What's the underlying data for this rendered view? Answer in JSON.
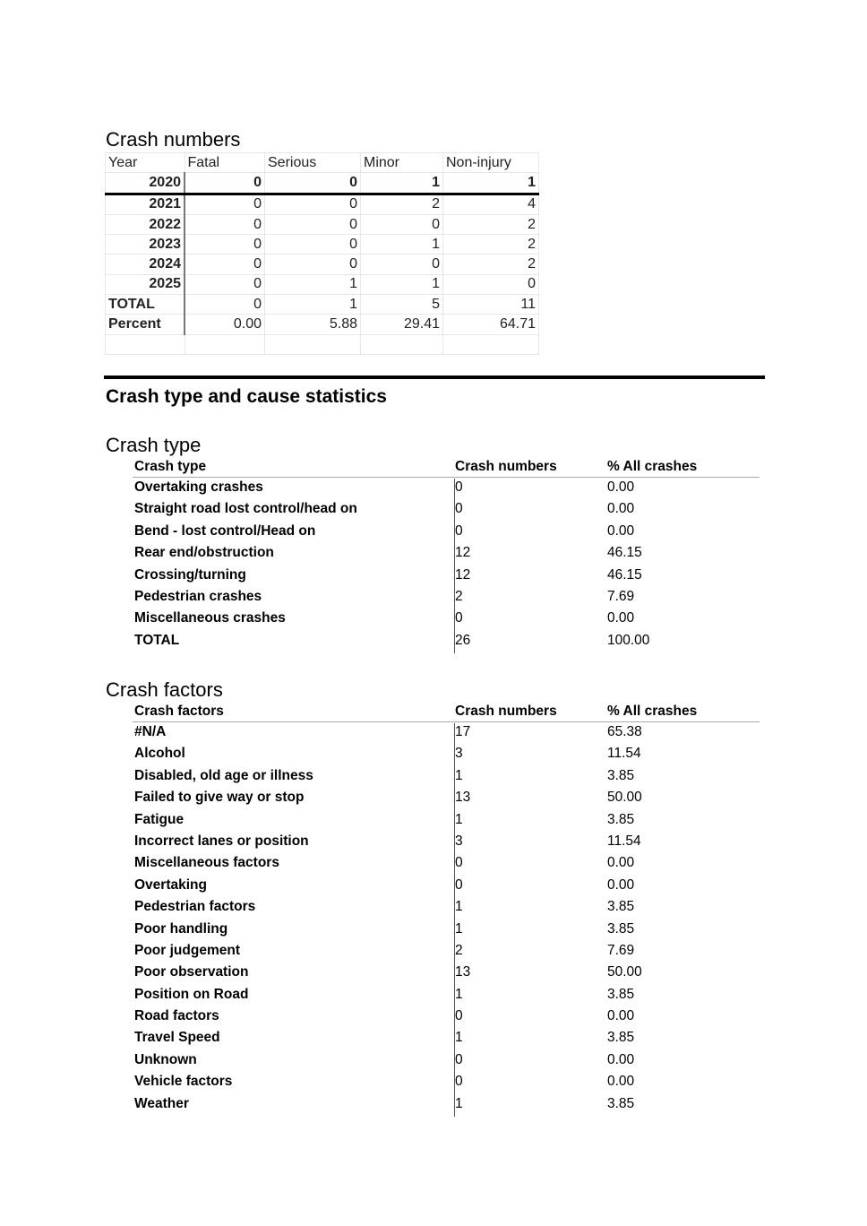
{
  "crash_numbers": {
    "title": "Crash numbers",
    "headers": [
      "Year",
      "Fatal",
      "Serious",
      "Minor",
      "Non-injury"
    ],
    "rows": [
      [
        "2020",
        "0",
        "0",
        "1",
        "1"
      ],
      [
        "2021",
        "0",
        "0",
        "2",
        "4"
      ],
      [
        "2022",
        "0",
        "0",
        "0",
        "2"
      ],
      [
        "2023",
        "0",
        "0",
        "1",
        "2"
      ],
      [
        "2024",
        "0",
        "0",
        "0",
        "2"
      ],
      [
        "2025",
        "0",
        "1",
        "1",
        "0"
      ],
      [
        "TOTAL",
        "0",
        "1",
        "5",
        "11"
      ],
      [
        "Percent",
        "0.00",
        "5.88",
        "29.41",
        "64.71"
      ]
    ]
  },
  "section_title": "Crash type and cause statistics",
  "crash_type": {
    "title": "Crash type",
    "headers": [
      "Crash type",
      "Crash numbers",
      "% All crashes"
    ],
    "rows": [
      [
        "Overtaking crashes",
        "0",
        "0.00"
      ],
      [
        "Straight road lost control/head on",
        "0",
        "0.00"
      ],
      [
        "Bend - lost control/Head on",
        "0",
        "0.00"
      ],
      [
        "Rear end/obstruction",
        "12",
        "46.15"
      ],
      [
        "Crossing/turning",
        "12",
        "46.15"
      ],
      [
        "Pedestrian crashes",
        "2",
        "7.69"
      ],
      [
        "Miscellaneous crashes",
        "0",
        "0.00"
      ],
      [
        "TOTAL",
        "26",
        "100.00"
      ]
    ]
  },
  "crash_factors": {
    "title": "Crash factors",
    "headers": [
      "Crash factors",
      "Crash numbers",
      "% All crashes"
    ],
    "rows": [
      [
        "#N/A",
        "17",
        "65.38"
      ],
      [
        "Alcohol",
        "3",
        "11.54"
      ],
      [
        "Disabled, old age or illness",
        "1",
        "3.85"
      ],
      [
        "Failed to give way or stop",
        "13",
        "50.00"
      ],
      [
        "Fatigue",
        "1",
        "3.85"
      ],
      [
        "Incorrect lanes or position",
        "3",
        "11.54"
      ],
      [
        "Miscellaneous factors",
        "0",
        "0.00"
      ],
      [
        "Overtaking",
        "0",
        "0.00"
      ],
      [
        "Pedestrian factors",
        "1",
        "3.85"
      ],
      [
        "Poor handling",
        "1",
        "3.85"
      ],
      [
        "Poor judgement",
        "2",
        "7.69"
      ],
      [
        "Poor observation",
        "13",
        "50.00"
      ],
      [
        "Position on Road",
        "1",
        "3.85"
      ],
      [
        "Road factors",
        "0",
        "0.00"
      ],
      [
        "Travel Speed",
        "1",
        "3.85"
      ],
      [
        "Unknown",
        "0",
        "0.00"
      ],
      [
        "Vehicle factors",
        "0",
        "0.00"
      ],
      [
        "Weather",
        "1",
        "3.85"
      ]
    ]
  }
}
